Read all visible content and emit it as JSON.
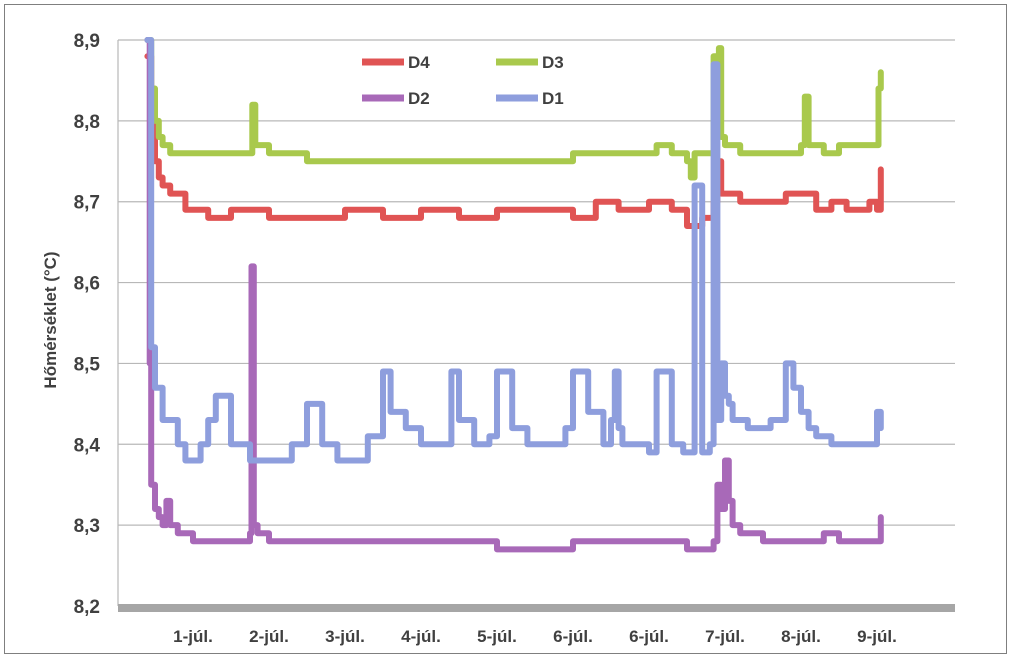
{
  "chart_data": {
    "type": "line",
    "title": "",
    "xlabel": "",
    "ylabel": "Hőmérséklet (°C)",
    "ylim": [
      8.2,
      8.9
    ],
    "yticks": [
      "8,2",
      "8,3",
      "8,4",
      "8,5",
      "8,6",
      "8,7",
      "8,8",
      "8,9"
    ],
    "categories": [
      "1-júl.",
      "2-júl.",
      "3-júl.",
      "4-júl.",
      "5-júl.",
      "6-júl.",
      "6-júl.",
      "7-júl.",
      "8-júl.",
      "9-júl."
    ],
    "grid": true,
    "legend_position": "top-center",
    "x_range": [
      -0.6,
      9.4
    ],
    "series": [
      {
        "name": "D4",
        "color": "#e05454",
        "x": [
          -0.6,
          -0.55,
          -0.5,
          -0.45,
          -0.4,
          -0.3,
          -0.1,
          0.2,
          0.5,
          0.8,
          1.0,
          1.5,
          2.0,
          2.5,
          3.0,
          3.5,
          4.0,
          4.5,
          5.0,
          5.3,
          5.6,
          5.9,
          6.0,
          6.2,
          6.3,
          6.5,
          6.7,
          6.8,
          6.85,
          6.9,
          6.95,
          7.0,
          7.2,
          7.5,
          7.8,
          8.0,
          8.2,
          8.4,
          8.6,
          8.8,
          8.9,
          9.0,
          9.05
        ],
        "values": [
          8.88,
          8.8,
          8.75,
          8.73,
          8.72,
          8.71,
          8.69,
          8.68,
          8.69,
          8.69,
          8.68,
          8.68,
          8.69,
          8.68,
          8.69,
          8.68,
          8.69,
          8.69,
          8.68,
          8.7,
          8.69,
          8.69,
          8.7,
          8.7,
          8.69,
          8.67,
          8.68,
          8.68,
          8.7,
          8.75,
          8.71,
          8.71,
          8.7,
          8.7,
          8.71,
          8.71,
          8.69,
          8.7,
          8.69,
          8.69,
          8.7,
          8.69,
          8.74
        ]
      },
      {
        "name": "D3",
        "color": "#a9c94d",
        "x": [
          -0.6,
          -0.55,
          -0.5,
          -0.45,
          -0.4,
          -0.3,
          0.0,
          0.5,
          0.75,
          0.78,
          0.82,
          1.0,
          1.5,
          2.0,
          2.5,
          3.0,
          3.5,
          4.0,
          4.5,
          5.0,
          5.5,
          5.9,
          6.0,
          6.05,
          6.1,
          6.3,
          6.5,
          6.55,
          6.6,
          6.8,
          6.85,
          6.88,
          6.92,
          6.95,
          7.0,
          7.2,
          7.5,
          7.8,
          8.0,
          8.05,
          8.1,
          8.3,
          8.5,
          8.8,
          9.0,
          9.02,
          9.05
        ],
        "values": [
          8.9,
          8.84,
          8.8,
          8.78,
          8.77,
          8.76,
          8.76,
          8.76,
          8.76,
          8.82,
          8.77,
          8.76,
          8.75,
          8.75,
          8.75,
          8.75,
          8.75,
          8.75,
          8.75,
          8.76,
          8.76,
          8.76,
          8.76,
          8.76,
          8.77,
          8.76,
          8.75,
          8.73,
          8.76,
          8.76,
          8.88,
          8.8,
          8.89,
          8.78,
          8.77,
          8.76,
          8.76,
          8.76,
          8.77,
          8.83,
          8.77,
          8.76,
          8.77,
          8.77,
          8.77,
          8.84,
          8.86
        ]
      },
      {
        "name": "D2",
        "color": "#a869b8",
        "x": [
          -0.6,
          -0.57,
          -0.55,
          -0.5,
          -0.45,
          -0.4,
          -0.35,
          -0.3,
          -0.2,
          0.0,
          0.5,
          0.75,
          0.77,
          0.8,
          0.85,
          1.0,
          1.5,
          2.0,
          2.5,
          3.0,
          3.5,
          4.0,
          4.5,
          5.0,
          5.5,
          6.0,
          6.3,
          6.5,
          6.8,
          6.85,
          6.9,
          6.95,
          7.0,
          7.05,
          7.1,
          7.2,
          7.5,
          8.0,
          8.3,
          8.5,
          8.8,
          9.0,
          9.05
        ],
        "values": [
          8.9,
          8.5,
          8.35,
          8.32,
          8.31,
          8.3,
          8.33,
          8.3,
          8.29,
          8.28,
          8.28,
          8.29,
          8.62,
          8.3,
          8.29,
          8.28,
          8.28,
          8.28,
          8.28,
          8.28,
          8.28,
          8.27,
          8.27,
          8.28,
          8.28,
          8.28,
          8.28,
          8.27,
          8.27,
          8.28,
          8.35,
          8.32,
          8.38,
          8.33,
          8.3,
          8.29,
          8.28,
          8.28,
          8.29,
          8.28,
          8.28,
          8.28,
          8.31
        ]
      },
      {
        "name": "D1",
        "color": "#8e9edd",
        "x": [
          -0.6,
          -0.55,
          -0.5,
          -0.4,
          -0.2,
          -0.1,
          0.0,
          0.1,
          0.2,
          0.3,
          0.5,
          0.75,
          0.8,
          1.0,
          1.3,
          1.5,
          1.7,
          1.9,
          2.1,
          2.3,
          2.5,
          2.6,
          2.8,
          3.0,
          3.2,
          3.4,
          3.5,
          3.7,
          3.9,
          4.0,
          4.2,
          4.4,
          4.5,
          4.7,
          4.9,
          5.0,
          5.2,
          5.4,
          5.5,
          5.55,
          5.6,
          5.65,
          5.8,
          6.0,
          6.1,
          6.3,
          6.45,
          6.5,
          6.6,
          6.7,
          6.75,
          6.8,
          6.85,
          6.9,
          6.95,
          7.0,
          7.05,
          7.1,
          7.3,
          7.6,
          7.8,
          7.9,
          8.0,
          8.1,
          8.2,
          8.4,
          8.6,
          8.8,
          9.0,
          9.05
        ],
        "values": [
          8.9,
          8.52,
          8.47,
          8.43,
          8.4,
          8.38,
          8.38,
          8.4,
          8.43,
          8.46,
          8.4,
          8.38,
          8.38,
          8.38,
          8.4,
          8.45,
          8.4,
          8.38,
          8.38,
          8.41,
          8.49,
          8.44,
          8.42,
          8.4,
          8.4,
          8.49,
          8.43,
          8.4,
          8.41,
          8.49,
          8.42,
          8.4,
          8.4,
          8.4,
          8.42,
          8.49,
          8.44,
          8.4,
          8.43,
          8.49,
          8.42,
          8.4,
          8.4,
          8.39,
          8.49,
          8.4,
          8.39,
          8.39,
          8.72,
          8.39,
          8.39,
          8.4,
          8.87,
          8.43,
          8.5,
          8.46,
          8.45,
          8.43,
          8.42,
          8.43,
          8.5,
          8.47,
          8.44,
          8.42,
          8.41,
          8.4,
          8.4,
          8.4,
          8.44,
          8.42
        ]
      }
    ]
  }
}
